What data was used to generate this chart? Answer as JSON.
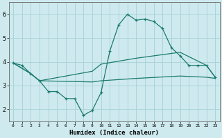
{
  "xlabel": "Humidex (Indice chaleur)",
  "xlim": [
    -0.5,
    23.5
  ],
  "ylim": [
    1.5,
    6.5
  ],
  "yticks": [
    2,
    3,
    4,
    5,
    6
  ],
  "xticks": [
    0,
    1,
    2,
    3,
    4,
    5,
    6,
    7,
    8,
    9,
    10,
    11,
    12,
    13,
    14,
    15,
    16,
    17,
    18,
    19,
    20,
    21,
    22,
    23
  ],
  "background_color": "#ceeaee",
  "grid_color": "#aad4da",
  "line_color": "#1a7a6e",
  "line1": {
    "x": [
      0,
      1,
      2,
      3,
      4,
      5,
      6,
      7,
      8,
      9,
      10,
      11,
      12,
      13,
      14,
      15,
      16,
      17,
      18,
      19,
      20,
      21,
      22,
      23
    ],
    "y": [
      3.95,
      3.85,
      3.5,
      3.2,
      2.75,
      2.75,
      2.45,
      2.45,
      1.75,
      1.95,
      2.7,
      4.45,
      5.55,
      6.0,
      5.75,
      5.8,
      5.7,
      5.4,
      4.6,
      4.25,
      3.85,
      3.85,
      3.85,
      3.35
    ]
  },
  "line2": {
    "x": [
      0,
      2,
      3,
      9,
      10,
      14,
      19,
      22,
      23
    ],
    "y": [
      3.95,
      3.5,
      3.2,
      3.15,
      3.2,
      3.3,
      3.4,
      3.35,
      3.3
    ]
  },
  "line3": {
    "x": [
      0,
      2,
      3,
      9,
      10,
      14,
      19,
      22,
      23
    ],
    "y": [
      3.95,
      3.5,
      3.2,
      3.6,
      3.9,
      4.15,
      4.4,
      3.85,
      3.35
    ]
  }
}
